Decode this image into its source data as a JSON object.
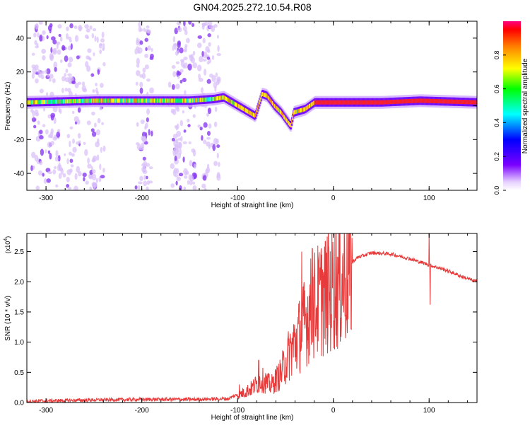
{
  "title": "GN04.2025.272.10.54.R08",
  "chart_data": [
    {
      "type": "heatmap",
      "title": "GN04.2025.272.10.54.R08",
      "xlabel": "Height of straight line (km)",
      "ylabel": "Frequency (Hz)",
      "xlim": [
        -320,
        150
      ],
      "ylim": [
        -50,
        50
      ],
      "xticks": [
        -300,
        -200,
        -100,
        0,
        100
      ],
      "yticks": [
        -40,
        -20,
        0,
        20,
        40
      ],
      "colorbar": {
        "label": "Normalized spectral amplitude",
        "range": [
          0,
          1
        ],
        "ticks": [
          "0.0",
          "0.2",
          "0.4",
          "0.6",
          "0.8"
        ]
      },
      "band_ridge": [
        {
          "x": -320,
          "y": 2
        },
        {
          "x": -250,
          "y": 3
        },
        {
          "x": -200,
          "y": 3
        },
        {
          "x": -150,
          "y": 3
        },
        {
          "x": -125,
          "y": 4
        },
        {
          "x": -115,
          "y": 5
        },
        {
          "x": -100,
          "y": 0
        },
        {
          "x": -82,
          "y": -6
        },
        {
          "x": -75,
          "y": 7
        },
        {
          "x": -70,
          "y": 6
        },
        {
          "x": -62,
          "y": 0
        },
        {
          "x": -55,
          "y": -4
        },
        {
          "x": -45,
          "y": -12
        },
        {
          "x": -42,
          "y": -4
        },
        {
          "x": -30,
          "y": -2
        },
        {
          "x": -20,
          "y": 2
        },
        {
          "x": 0,
          "y": 2
        },
        {
          "x": 50,
          "y": 2
        },
        {
          "x": 90,
          "y": 3
        },
        {
          "x": 150,
          "y": 2
        }
      ]
    },
    {
      "type": "line",
      "xlabel": "Height of straight line (km)",
      "ylabel": "SNR (10 * v/v)",
      "exponent_label": "(x10",
      "exponent_power": "4",
      "y_scale": 10000,
      "xlim": [
        -320,
        150
      ],
      "ylim": [
        0,
        2.8
      ],
      "xticks": [
        -300,
        -200,
        -100,
        0,
        100
      ],
      "yticks": [
        "0.0",
        "0.5",
        "1.0",
        "1.5",
        "2.0",
        "2.5"
      ],
      "series": [
        {
          "name": "SNR",
          "color": "#e83a3a",
          "envelope": [
            {
              "x": -320,
              "y": 0.01
            },
            {
              "x": -250,
              "y": 0.03
            },
            {
              "x": -200,
              "y": 0.04
            },
            {
              "x": -150,
              "y": 0.04
            },
            {
              "x": -110,
              "y": 0.05
            },
            {
              "x": -100,
              "y": 0.12
            },
            {
              "x": -85,
              "y": 0.25
            },
            {
              "x": -75,
              "y": 0.4
            },
            {
              "x": -65,
              "y": 0.3
            },
            {
              "x": -55,
              "y": 0.5
            },
            {
              "x": -45,
              "y": 0.9
            },
            {
              "x": -35,
              "y": 1.2
            },
            {
              "x": -25,
              "y": 1.6
            },
            {
              "x": -15,
              "y": 1.8
            },
            {
              "x": -5,
              "y": 1.95
            },
            {
              "x": 5,
              "y": 2.1
            },
            {
              "x": 15,
              "y": 2.25
            },
            {
              "x": 25,
              "y": 2.4
            },
            {
              "x": 40,
              "y": 2.48
            },
            {
              "x": 60,
              "y": 2.46
            },
            {
              "x": 80,
              "y": 2.38
            },
            {
              "x": 100,
              "y": 2.28
            },
            {
              "x": 120,
              "y": 2.18
            },
            {
              "x": 135,
              "y": 2.08
            },
            {
              "x": 150,
              "y": 2.0
            }
          ],
          "spikes": [
            {
              "x": -33,
              "y": 2.5
            },
            {
              "x": -22,
              "y": 2.55
            },
            {
              "x": -12,
              "y": 2.45
            },
            {
              "x": -5,
              "y": 2.6
            },
            {
              "x": 0,
              "y": 2.2
            },
            {
              "x": 100,
              "y": 2.8
            },
            {
              "x": 101,
              "y": 1.62
            },
            {
              "x": -98,
              "y": 0.3
            },
            {
              "x": -78,
              "y": 0.7
            }
          ]
        }
      ]
    }
  ]
}
